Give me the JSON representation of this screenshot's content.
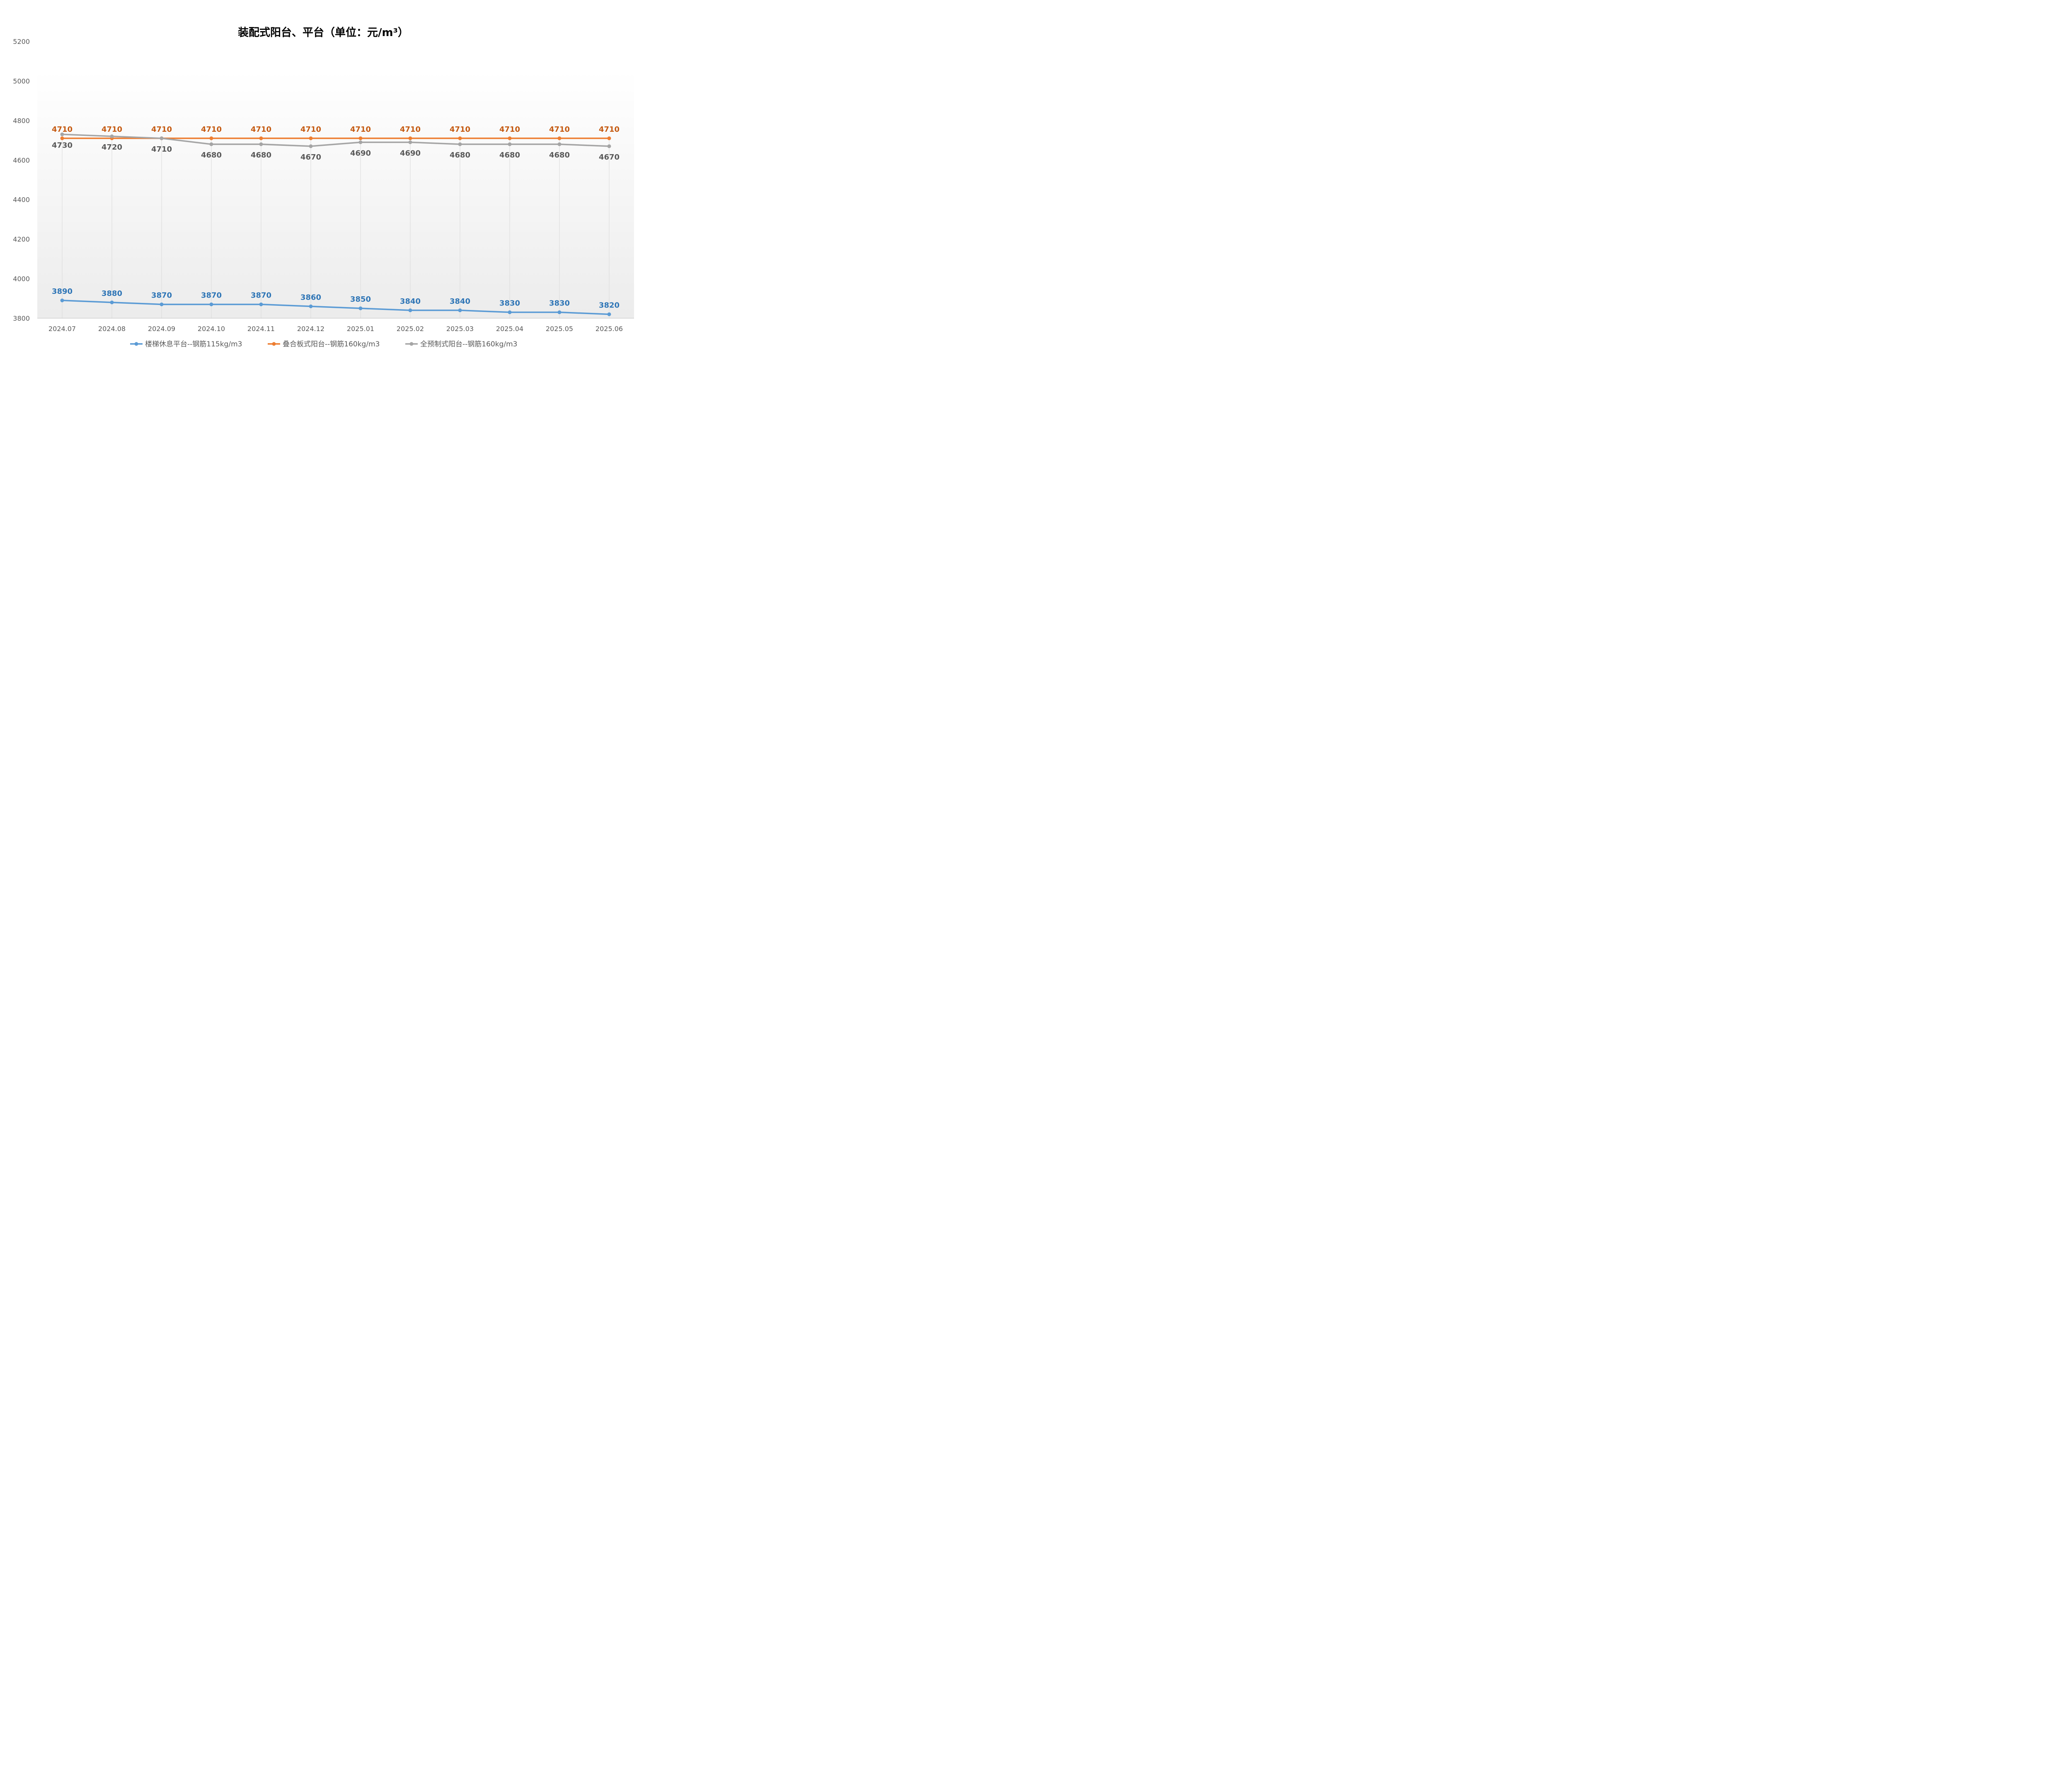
{
  "chart_data": {
    "type": "line",
    "title": "装配式阳台、平台（单位：元/m³）",
    "xlabel": "",
    "ylabel": "",
    "ylim": [
      3800,
      5200
    ],
    "yticks": [
      3800,
      4000,
      4200,
      4400,
      4600,
      4800,
      5000,
      5200
    ],
    "grid": "vertical",
    "legend_position": "bottom",
    "categories": [
      "2024.07",
      "2024.08",
      "2024.09",
      "2024.10",
      "2024.11",
      "2024.12",
      "2025.01",
      "2025.02",
      "2025.03",
      "2025.04",
      "2025.05",
      "2025.06"
    ],
    "series": [
      {
        "name": "楼梯休息平台--钢筋115kg/m3",
        "color": "#5b9bd5",
        "label_color": "#2e75b6",
        "label_position": "above",
        "values": [
          3890,
          3880,
          3870,
          3870,
          3870,
          3860,
          3850,
          3840,
          3840,
          3830,
          3830,
          3820
        ]
      },
      {
        "name": "叠合板式阳台--钢筋160kg/m3",
        "color": "#ed7d31",
        "label_color": "#c55a11",
        "label_position": "above",
        "values": [
          4710,
          4710,
          4710,
          4710,
          4710,
          4710,
          4710,
          4710,
          4710,
          4710,
          4710,
          4710
        ]
      },
      {
        "name": "全预制式阳台--钢筋160kg/m3",
        "color": "#a5a5a5",
        "label_color": "#595959",
        "label_position": "below",
        "values": [
          4730,
          4720,
          4710,
          4680,
          4680,
          4670,
          4690,
          4690,
          4680,
          4680,
          4680,
          4670
        ]
      }
    ]
  }
}
